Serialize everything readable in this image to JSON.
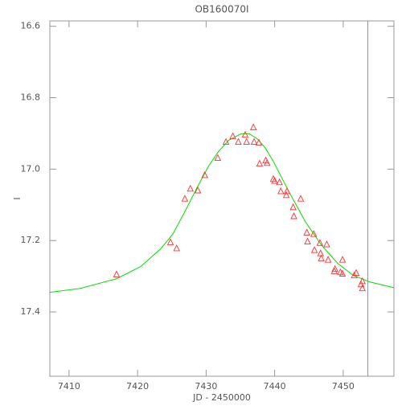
{
  "chart_data": {
    "type": "scatter",
    "title": "OB160070I",
    "x_label": "JD - 2450000",
    "y_label": "I",
    "xlim": [
      7407.2,
      7457.4
    ],
    "ylim": [
      17.58,
      16.585
    ],
    "xticks": [
      7410,
      7420,
      7430,
      7440,
      7450
    ],
    "yticks": [
      16.6,
      16.8,
      {
        "value": 17,
        "label": "17.0"
      },
      17.2,
      17.4
    ],
    "points": {
      "color": "#ff3030",
      "x": [
        7416.93,
        7424.8,
        7425.7,
        7426.9,
        7427.7,
        7428.8,
        7429.8,
        7431.7,
        7432.9,
        7433.9,
        7434.7,
        7435.7,
        7435.9,
        7436.9,
        7437.0,
        7437.7,
        7437.8,
        7438.7,
        7438.9,
        7439.8,
        7440.0,
        7440.7,
        7440.9,
        7441.7,
        7441.8,
        7442.7,
        7442.8,
        7443.8,
        7444.7,
        7444.8,
        7445.7,
        7445.8,
        7446.6,
        7446.7,
        7446.8,
        7447.6,
        7447.8,
        7448.7,
        7448.8,
        7449.6,
        7449.9,
        7449.9,
        7451.6,
        7451.9,
        7452.6,
        7452.8,
        7452.8
      ],
      "values": [
        17.295,
        17.205,
        17.222,
        17.083,
        17.055,
        17.06,
        17.017,
        16.969,
        16.924,
        16.908,
        16.924,
        16.904,
        16.924,
        16.883,
        16.924,
        16.926,
        16.985,
        16.976,
        16.983,
        17.028,
        17.033,
        17.037,
        17.062,
        17.073,
        17.062,
        17.107,
        17.132,
        17.083,
        17.178,
        17.203,
        17.182,
        17.227,
        17.207,
        17.236,
        17.25,
        17.211,
        17.254,
        17.286,
        17.28,
        17.289,
        17.293,
        17.254,
        17.298,
        17.291,
        17.323,
        17.334,
        17.314
      ]
    },
    "model": {
      "color": "#00e000",
      "x": [
        7407.2,
        7411.65,
        7416.93,
        7420.45,
        7423.38,
        7425.14,
        7426.9,
        7428.65,
        7430.41,
        7431.8,
        7433.3,
        7435.1,
        7436.3,
        7437.45,
        7438.6,
        7439.8,
        7442.1,
        7444.5,
        7446.8,
        7449.2,
        7451.5,
        7453.9,
        7457.4
      ],
      "values": [
        17.345,
        17.334,
        17.307,
        17.273,
        17.223,
        17.182,
        17.119,
        17.053,
        16.99,
        16.951,
        16.919,
        16.901,
        16.901,
        16.915,
        16.94,
        16.978,
        17.064,
        17.148,
        17.212,
        17.264,
        17.298,
        17.316,
        17.332
      ]
    },
    "vline": {
      "x": 7453.6,
      "color": "#8080ff"
    }
  }
}
